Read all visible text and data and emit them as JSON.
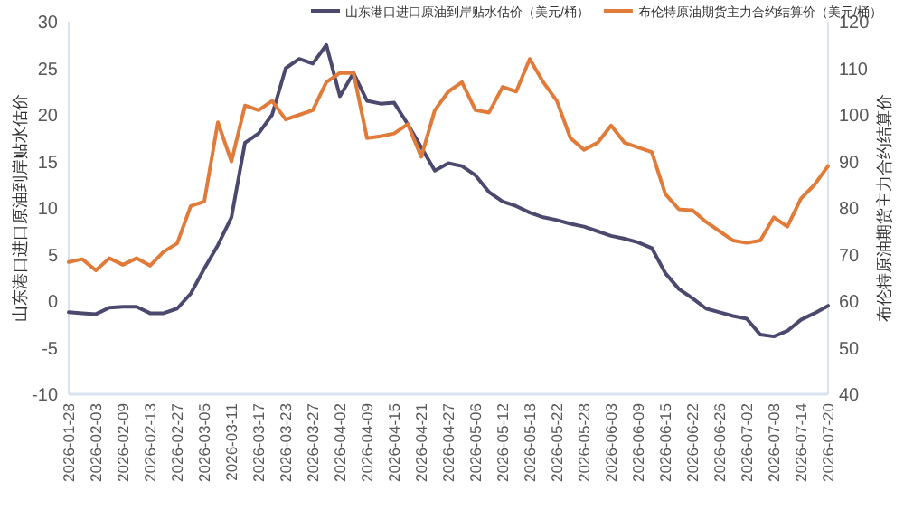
{
  "chart_data": {
    "type": "line",
    "categories": [
      "2026-01-28",
      null,
      "2026-02-03",
      null,
      "2026-02-09",
      null,
      "2026-02-13",
      null,
      "2026-02-27",
      null,
      "2026-03-05",
      null,
      "2026-03-11",
      null,
      "2026-03-17",
      null,
      "2026-03-23",
      null,
      "2026-03-27",
      null,
      "2026-04-02",
      null,
      "2026-04-09",
      null,
      "2026-04-15",
      null,
      "2026-04-21",
      null,
      "2026-04-27",
      null,
      "2026-05-06",
      null,
      "2026-05-12",
      null,
      "2026-05-18",
      null,
      "2026-05-22",
      null,
      "2026-05-28",
      null,
      "2026-06-03",
      null,
      "2026-06-09",
      null,
      "2026-06-15",
      null,
      "2026-06-22",
      null,
      "2026-06-26",
      null,
      "2026-07-02",
      null,
      "2026-07-08",
      null,
      "2026-07-14",
      null,
      "2026-07-20"
    ],
    "series": [
      {
        "name": "山东港口进口原油到岸贴水估价（美元/桶）",
        "color": "#4b4a6e",
        "values": [
          -1.2,
          -1.3,
          -1.4,
          -0.7,
          -0.6,
          -0.6,
          -1.3,
          -1.3,
          -0.8,
          0.8,
          3.5,
          6,
          9,
          17,
          18,
          20,
          25,
          26,
          25.5,
          27.5,
          22,
          24.5,
          21.5,
          21.2,
          21.3,
          19,
          16.5,
          14,
          14.8,
          14.5,
          13.5,
          11.7,
          10.7,
          10.2,
          9.5,
          9,
          8.7,
          8.3,
          8,
          7.5,
          7,
          6.7,
          6.3,
          5.7,
          3,
          1.3,
          0.3,
          -0.8,
          -1.2,
          -1.6,
          -1.9,
          -3.6,
          -3.8,
          -3.2,
          -2,
          -1.3,
          -0.5
        ]
      },
      {
        "name": "布伦特原油期货主力合约结算价（美元/桶）",
        "color": "#e07b39",
        "axis": "y2",
        "values": [
          68.4,
          69,
          66.6,
          69.2,
          67.8,
          69.2,
          67.6,
          70.6,
          72.4,
          80.4,
          81.4,
          98.4,
          90,
          102,
          101,
          103,
          99,
          100,
          101,
          107,
          109,
          109,
          95,
          95.4,
          96,
          98,
          91,
          101,
          105,
          107,
          101,
          100.5,
          106,
          105,
          112,
          107,
          103,
          95,
          92.5,
          94,
          97.7,
          94,
          93,
          92,
          83,
          79.7,
          79.5,
          77,
          75,
          73,
          72.5,
          73,
          78,
          76,
          82,
          85,
          89
        ]
      }
    ],
    "ylabel": "山东港口进口原油到岸贴水估价",
    "y2label": "布伦特原油期货主力合约结算价",
    "ylim": [
      -10,
      30
    ],
    "yticks": [
      -10,
      -5,
      0,
      5,
      10,
      15,
      20,
      25,
      30
    ],
    "y2lim": [
      40,
      120
    ],
    "y2ticks": [
      40,
      50,
      60,
      70,
      80,
      90,
      100,
      110,
      120
    ],
    "legend": "top",
    "grid": false
  }
}
